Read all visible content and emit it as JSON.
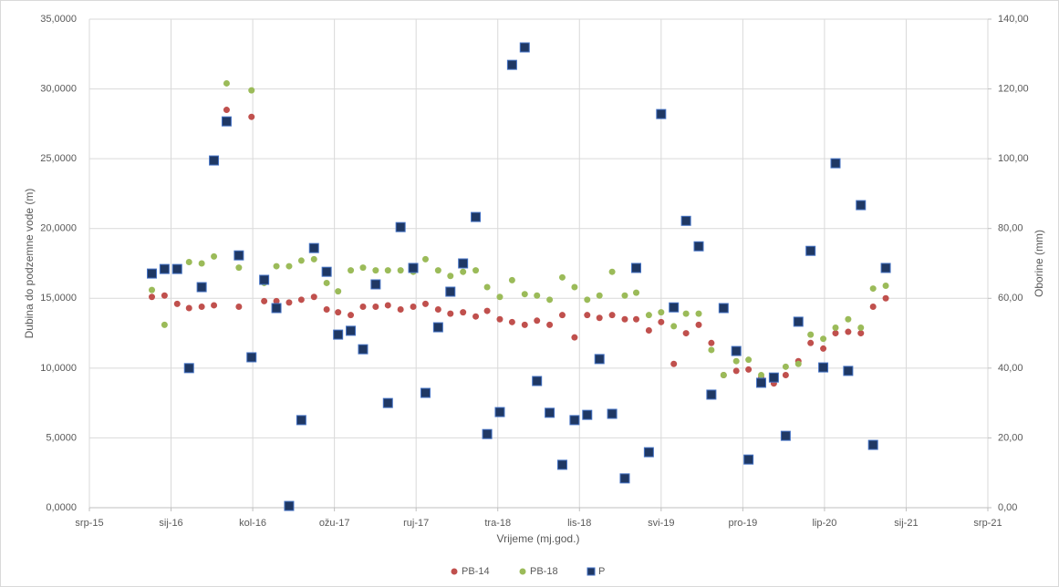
{
  "chart_data": {
    "type": "scatter",
    "x_label": "Vrijeme (mj.god.)",
    "y_label": "Dubina do podzemne vode (m)",
    "y2_label": "Oborine (mm)",
    "xlim": [
      42200,
      44400
    ],
    "xticks": [
      {
        "value": 42200,
        "label": "srp-15"
      },
      {
        "value": 42400,
        "label": "sij-16"
      },
      {
        "value": 42600,
        "label": "kol-16"
      },
      {
        "value": 42800,
        "label": "ožu-17"
      },
      {
        "value": 43000,
        "label": "ruj-17"
      },
      {
        "value": 43200,
        "label": "tra-18"
      },
      {
        "value": 43400,
        "label": "lis-18"
      },
      {
        "value": 43600,
        "label": "svi-19"
      },
      {
        "value": 43800,
        "label": "pro-19"
      },
      {
        "value": 44000,
        "label": "lip-20"
      },
      {
        "value": 44200,
        "label": "sij-21"
      },
      {
        "value": 44400,
        "label": "srp-21"
      }
    ],
    "ylim": [
      0,
      35
    ],
    "yticks": [
      {
        "value": 0,
        "label": "0,0000"
      },
      {
        "value": 5,
        "label": "5,0000"
      },
      {
        "value": 10,
        "label": "10,0000"
      },
      {
        "value": 15,
        "label": "15,0000"
      },
      {
        "value": 20,
        "label": "20,0000"
      },
      {
        "value": 25,
        "label": "25,0000"
      },
      {
        "value": 30,
        "label": "30,0000"
      },
      {
        "value": 35,
        "label": "35,0000"
      }
    ],
    "y2lim": [
      0,
      140
    ],
    "y2ticks": [
      {
        "value": 0,
        "label": "0,00"
      },
      {
        "value": 20,
        "label": "20,00"
      },
      {
        "value": 40,
        "label": "40,00"
      },
      {
        "value": 60,
        "label": "60,00"
      },
      {
        "value": 80,
        "label": "80,00"
      },
      {
        "value": 100,
        "label": "100,00"
      },
      {
        "value": 120,
        "label": "120,00"
      },
      {
        "value": 140,
        "label": "140,00"
      }
    ],
    "grid": true,
    "legend": "bottom",
    "x": [
      42353,
      42384,
      42415,
      42444,
      42475,
      42505,
      42536,
      42566,
      42597,
      42628,
      42658,
      42689,
      42719,
      42750,
      42781,
      42809,
      42840,
      42870,
      42901,
      42931,
      42962,
      42993,
      43023,
      43054,
      43084,
      43115,
      43146,
      43174,
      43205,
      43235,
      43266,
      43296,
      43327,
      43358,
      43388,
      43419,
      43449,
      43480,
      43511,
      43539,
      43570,
      43600,
      43631,
      43661,
      43692,
      43723,
      43753,
      43784,
      43814,
      43845,
      43876,
      43905,
      43936,
      43966,
      43997,
      44027,
      44058,
      44089,
      44119,
      44150
    ],
    "series": [
      {
        "name": "PB-14",
        "color": "#c0504d",
        "marker": "circle",
        "axis": "y",
        "values": [
          15.1,
          15.2,
          14.6,
          14.3,
          14.4,
          14.5,
          28.5,
          14.4,
          28.0,
          14.8,
          14.8,
          14.7,
          14.9,
          15.1,
          14.2,
          14.0,
          13.8,
          14.4,
          14.4,
          14.5,
          14.2,
          14.4,
          14.6,
          14.2,
          13.9,
          14.0,
          13.7,
          14.1,
          13.5,
          13.3,
          13.1,
          13.4,
          13.1,
          13.8,
          12.2,
          13.8,
          13.6,
          13.8,
          13.5,
          13.5,
          12.7,
          13.3,
          10.3,
          12.5,
          13.1,
          11.8,
          9.5,
          9.8,
          9.9,
          9.3,
          8.9,
          9.5,
          10.5,
          11.8,
          11.4,
          12.5,
          12.6,
          12.5,
          14.4,
          15.0
        ]
      },
      {
        "name": "PB-18",
        "color": "#9bbb59",
        "marker": "circle",
        "axis": "y",
        "values": [
          15.6,
          13.1,
          null,
          17.6,
          17.5,
          18.0,
          30.4,
          17.2,
          29.9,
          16.1,
          17.3,
          17.3,
          17.7,
          17.8,
          16.1,
          15.5,
          17.0,
          17.2,
          17.0,
          17.0,
          17.0,
          16.9,
          17.8,
          17.0,
          16.6,
          16.9,
          17.0,
          15.8,
          15.1,
          16.3,
          15.3,
          15.2,
          14.9,
          16.5,
          15.8,
          14.9,
          15.2,
          16.9,
          15.2,
          15.4,
          13.8,
          14.0,
          13.0,
          13.9,
          13.9,
          11.3,
          9.5,
          10.5,
          10.6,
          9.5,
          9.3,
          10.1,
          10.3,
          12.4,
          12.1,
          12.9,
          13.5,
          12.9,
          15.7,
          15.9
        ]
      },
      {
        "name": "P",
        "color": "#1f3864",
        "marker": "square",
        "axis": "y2",
        "values": [
          67.1,
          68.4,
          68.4,
          40.0,
          63.2,
          99.5,
          110.7,
          72.3,
          43.1,
          65.3,
          57.2,
          0.5,
          25.1,
          74.4,
          67.6,
          49.6,
          50.7,
          45.4,
          64.0,
          30.0,
          80.4,
          68.7,
          32.9,
          51.7,
          61.9,
          70.0,
          83.3,
          21.1,
          27.4,
          126.9,
          131.9,
          36.3,
          27.2,
          12.3,
          25.1,
          26.6,
          42.6,
          26.9,
          8.4,
          68.7,
          15.9,
          112.8,
          57.4,
          82.2,
          74.9,
          32.4,
          57.2,
          44.9,
          13.8,
          35.8,
          37.3,
          20.6,
          53.3,
          73.6,
          40.2,
          98.7,
          39.2,
          86.7,
          18.0,
          68.7
        ]
      }
    ]
  }
}
